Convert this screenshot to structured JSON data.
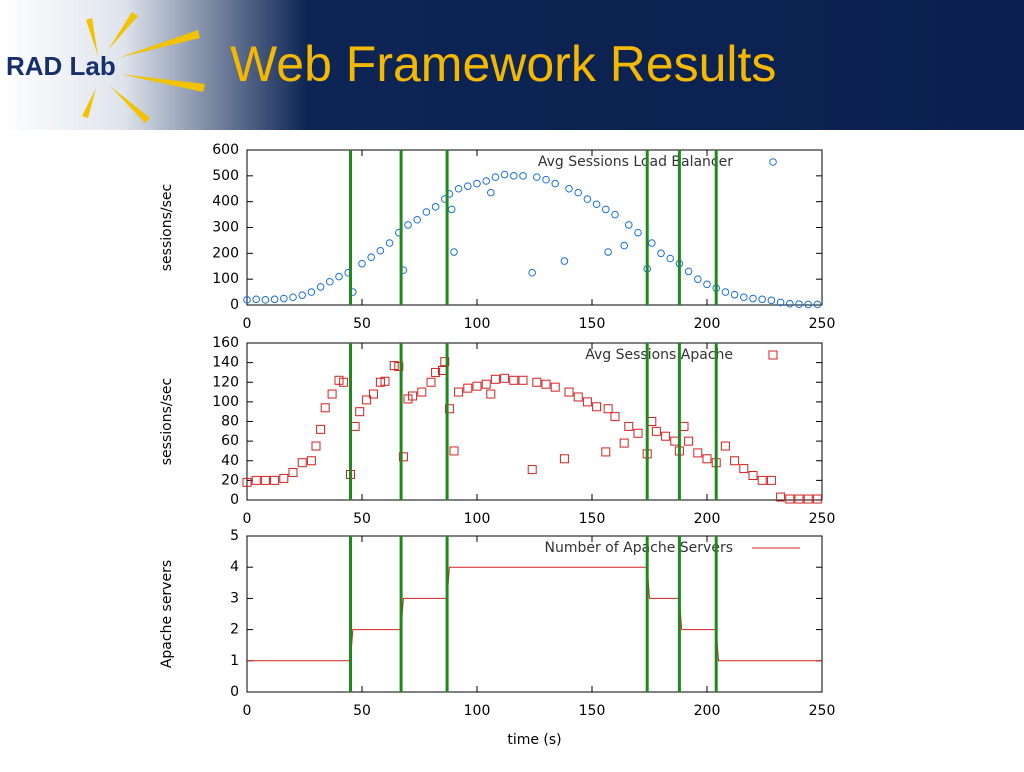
{
  "header": {
    "logo": "RAD Lab",
    "title": "Web Framework Results"
  },
  "chart_data": [
    {
      "type": "scatter",
      "marker": "circle",
      "ylabel": "sessions/sec",
      "xlim": [
        0,
        250
      ],
      "xticks": [
        0,
        50,
        100,
        150,
        200,
        250
      ],
      "ylim": [
        0,
        600
      ],
      "yticks": [
        0,
        100,
        200,
        300,
        400,
        500,
        600
      ],
      "vlines": [
        45,
        67,
        87,
        174,
        188,
        204
      ],
      "vline_color": "#1e8a1e",
      "series": [
        {
          "name": "Avg Sessions Load Balancer",
          "color": "#1a6fd6",
          "x": [
            0,
            4,
            8,
            12,
            16,
            20,
            24,
            28,
            32,
            36,
            40,
            44,
            46,
            50,
            54,
            58,
            62,
            66,
            68,
            70,
            74,
            78,
            82,
            86,
            88,
            89,
            90,
            92,
            96,
            100,
            104,
            106,
            108,
            112,
            116,
            120,
            124,
            126,
            130,
            134,
            138,
            140,
            144,
            148,
            152,
            156,
            157,
            160,
            164,
            166,
            170,
            174,
            176,
            180,
            184,
            188,
            192,
            196,
            200,
            204,
            208,
            212,
            216,
            220,
            224,
            228,
            232,
            236,
            240,
            244,
            248
          ],
          "values": [
            20,
            22,
            20,
            22,
            25,
            30,
            38,
            50,
            70,
            90,
            110,
            125,
            50,
            160,
            185,
            210,
            240,
            280,
            135,
            310,
            330,
            360,
            380,
            410,
            430,
            370,
            205,
            450,
            460,
            470,
            480,
            435,
            495,
            505,
            500,
            500,
            125,
            495,
            485,
            470,
            170,
            450,
            435,
            410,
            390,
            370,
            205,
            350,
            230,
            310,
            280,
            140,
            240,
            200,
            180,
            160,
            130,
            100,
            80,
            65,
            50,
            40,
            30,
            25,
            22,
            18,
            10,
            5,
            3,
            2,
            2
          ]
        }
      ]
    },
    {
      "type": "scatter",
      "marker": "square",
      "ylabel": "sessions/sec",
      "xlim": [
        0,
        250
      ],
      "xticks": [
        0,
        50,
        100,
        150,
        200,
        250
      ],
      "ylim": [
        0,
        160
      ],
      "yticks": [
        0,
        20,
        40,
        60,
        80,
        100,
        120,
        140,
        160
      ],
      "vlines": [
        45,
        67,
        87,
        174,
        188,
        204
      ],
      "vline_color": "#1e8a1e",
      "series": [
        {
          "name": "Avg Sessions Apache",
          "color": "#d42020",
          "x": [
            0,
            4,
            8,
            12,
            16,
            20,
            24,
            28,
            30,
            32,
            34,
            37,
            40,
            42,
            45,
            47,
            49,
            52,
            55,
            58,
            60,
            64,
            66,
            68,
            70,
            72,
            76,
            80,
            82,
            85,
            86,
            88,
            90,
            92,
            96,
            100,
            104,
            106,
            108,
            112,
            116,
            120,
            124,
            126,
            130,
            134,
            138,
            140,
            144,
            148,
            152,
            156,
            157,
            160,
            164,
            166,
            170,
            174,
            176,
            178,
            182,
            186,
            188,
            190,
            192,
            196,
            200,
            204,
            208,
            212,
            216,
            220,
            224,
            228,
            232,
            236,
            240,
            244,
            248
          ],
          "values": [
            18,
            20,
            20,
            20,
            22,
            28,
            38,
            40,
            55,
            72,
            94,
            108,
            122,
            120,
            26,
            75,
            90,
            102,
            108,
            120,
            121,
            137,
            136,
            44,
            103,
            106,
            110,
            120,
            130,
            132,
            141,
            93,
            50,
            110,
            114,
            116,
            118,
            108,
            123,
            124,
            122,
            122,
            31,
            120,
            118,
            115,
            42,
            110,
            105,
            100,
            95,
            49,
            93,
            85,
            58,
            75,
            68,
            47,
            80,
            70,
            65,
            60,
            50,
            75,
            60,
            48,
            42,
            38,
            55,
            40,
            32,
            25,
            20,
            20,
            3,
            1,
            1,
            1,
            1
          ]
        }
      ]
    },
    {
      "type": "line",
      "ylabel": "Apache servers",
      "xlabel": "time (s)",
      "xlim": [
        0,
        250
      ],
      "xticks": [
        0,
        50,
        100,
        150,
        200,
        250
      ],
      "ylim": [
        0,
        5
      ],
      "yticks": [
        0,
        1,
        2,
        3,
        4,
        5
      ],
      "vlines": [
        45,
        67,
        87,
        174,
        188,
        204
      ],
      "vline_color": "#1e8a1e",
      "series": [
        {
          "name": "Number of Apache Servers",
          "color": "#d42020",
          "x": [
            0,
            45,
            46,
            67,
            68,
            87,
            88,
            174,
            175,
            188,
            189,
            204,
            205,
            250
          ],
          "values": [
            1,
            1,
            2,
            2,
            3,
            3,
            4,
            4,
            3,
            3,
            2,
            2,
            1,
            1
          ]
        }
      ]
    }
  ]
}
